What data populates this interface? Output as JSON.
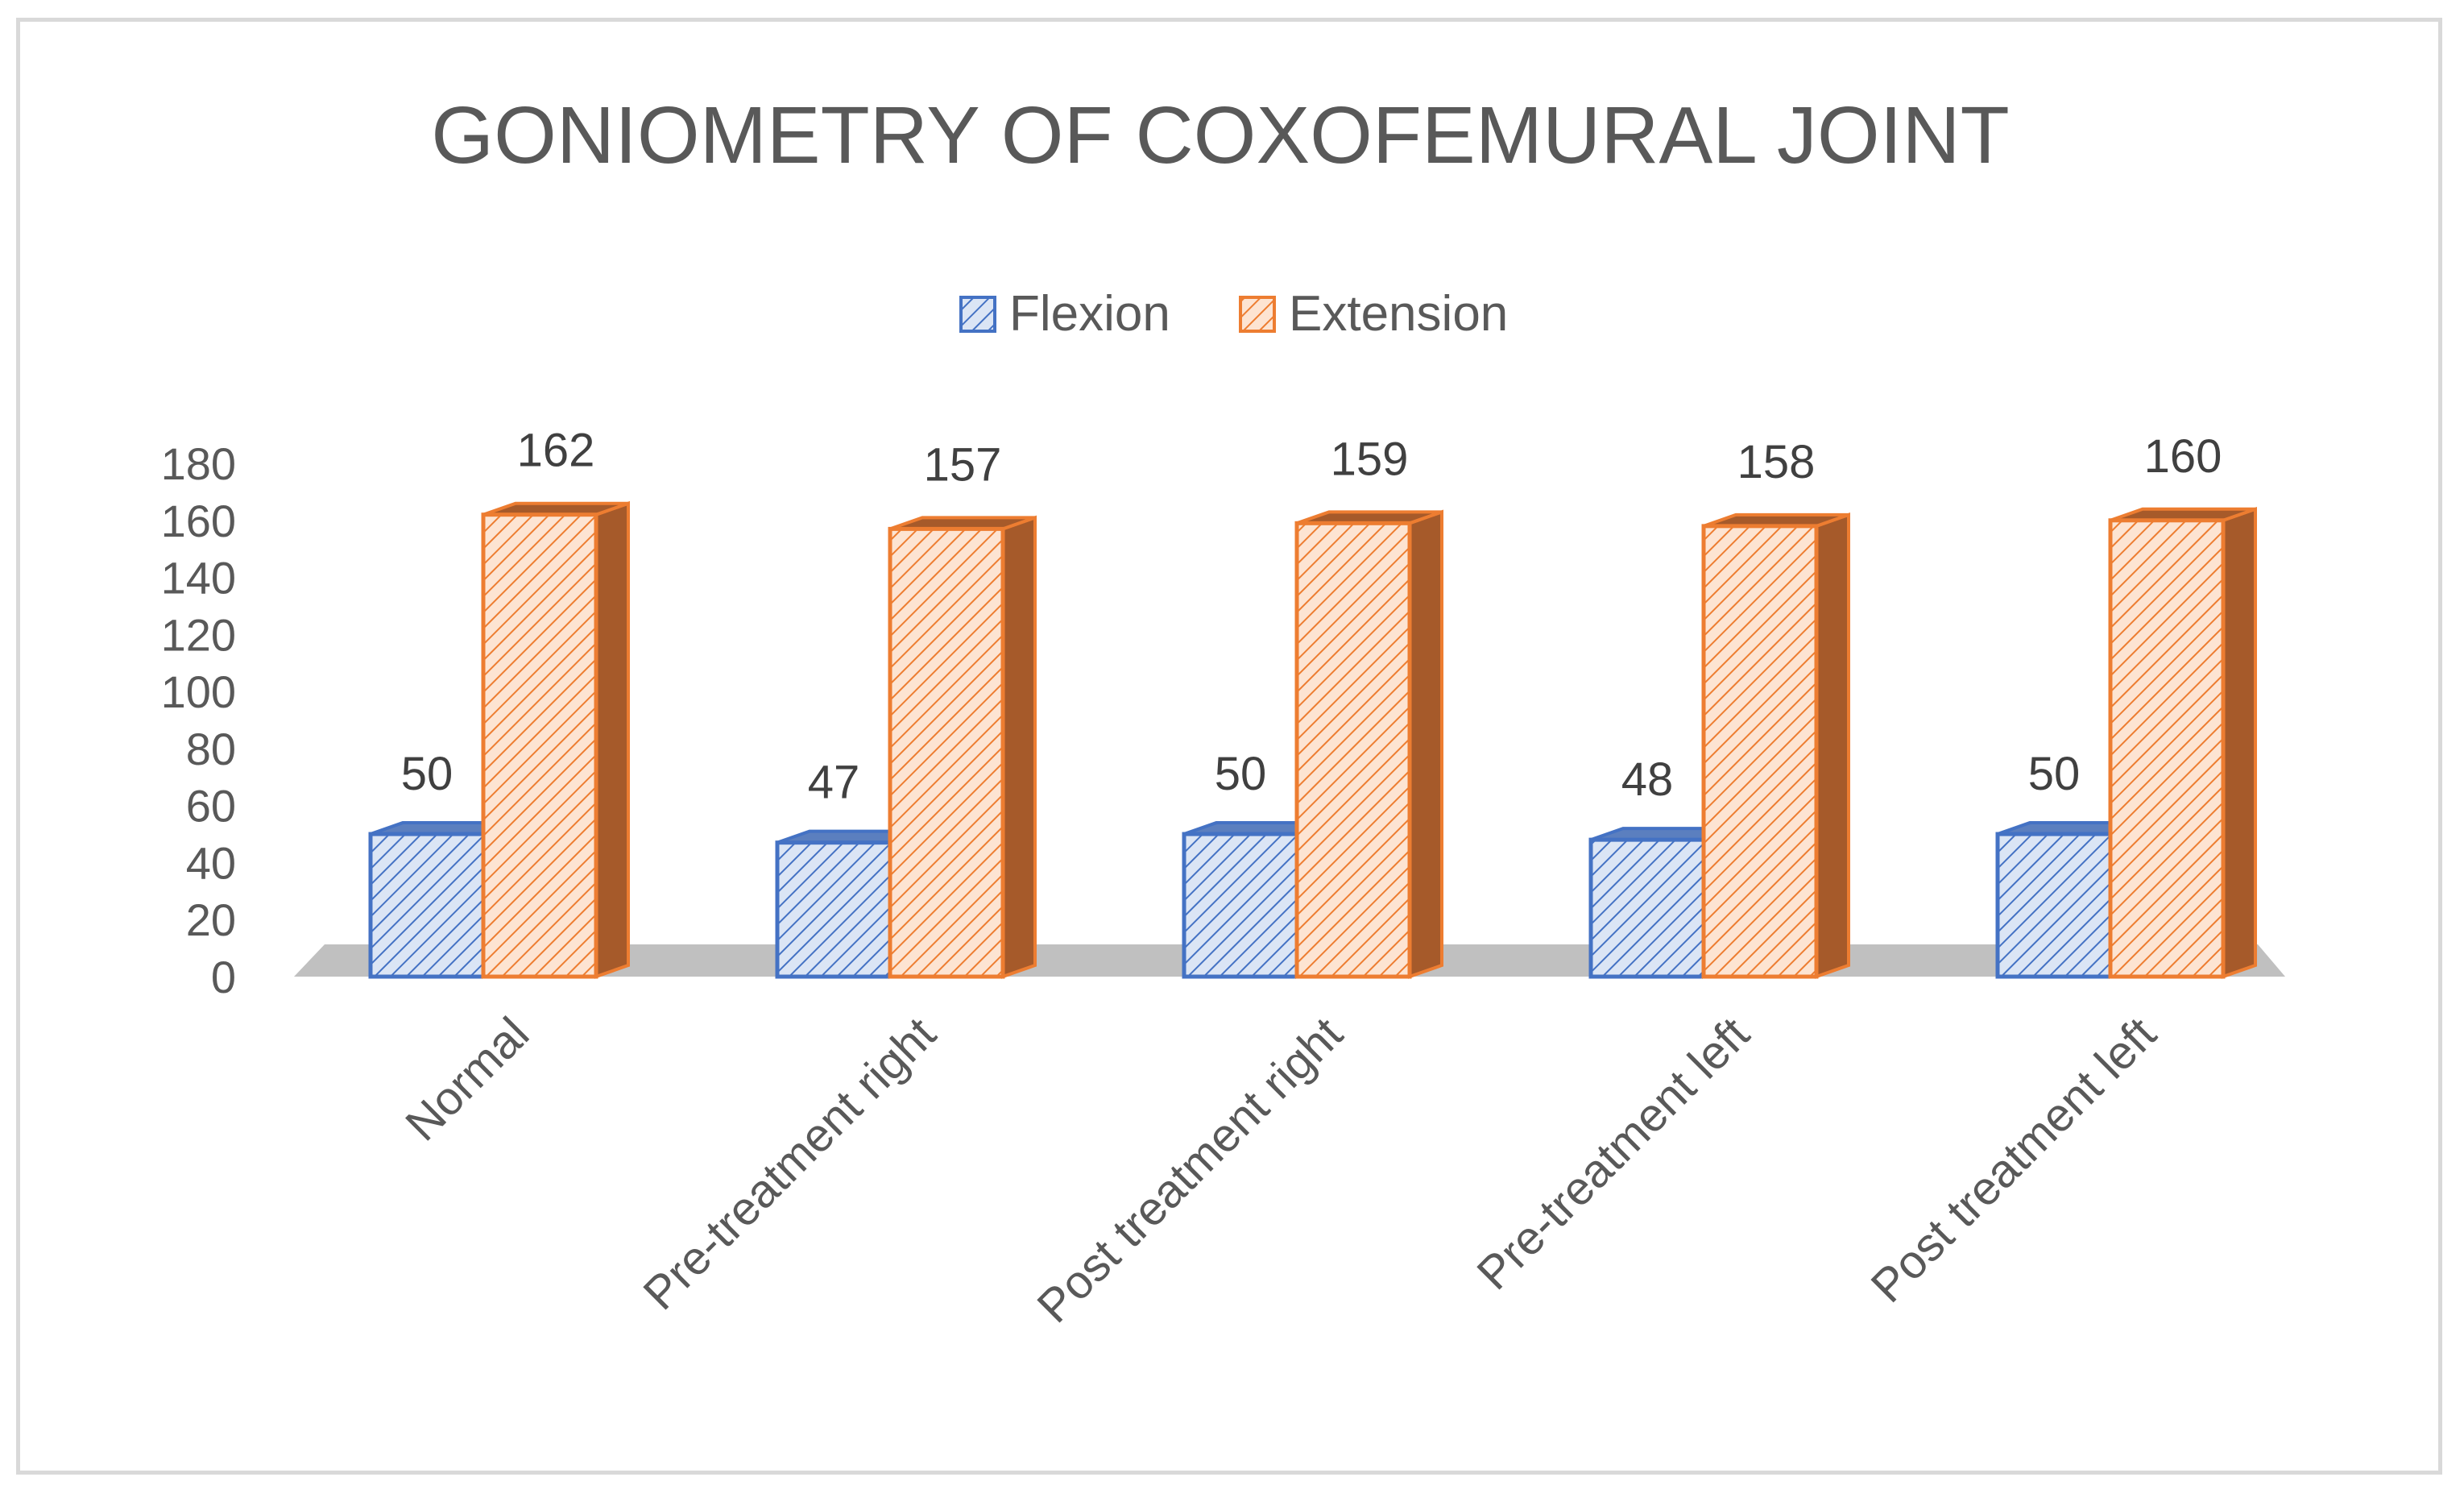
{
  "chart_data": {
    "type": "bar",
    "title": "GONIOMETRY OF COXOFEMURAL JOINT",
    "categories": [
      "Normal",
      "Pre-treatment right",
      "Post treatment right",
      "Pre-treatment left",
      "Post treatment left"
    ],
    "series": [
      {
        "name": "Flexion",
        "values": [
          50,
          47,
          50,
          48,
          50
        ],
        "color": "#4472c4",
        "fill": "#b4c7e7"
      },
      {
        "name": "Extension",
        "values": [
          162,
          157,
          159,
          158,
          160
        ],
        "color": "#ed7d31",
        "fill": "#fbd5b5"
      }
    ],
    "yticks": [
      "0",
      "20",
      "40",
      "60",
      "80",
      "100",
      "120",
      "140",
      "160",
      "180"
    ],
    "ylim": [
      0,
      180
    ],
    "xlabel": "",
    "ylabel": "",
    "legend": "top-center",
    "grid": false
  }
}
